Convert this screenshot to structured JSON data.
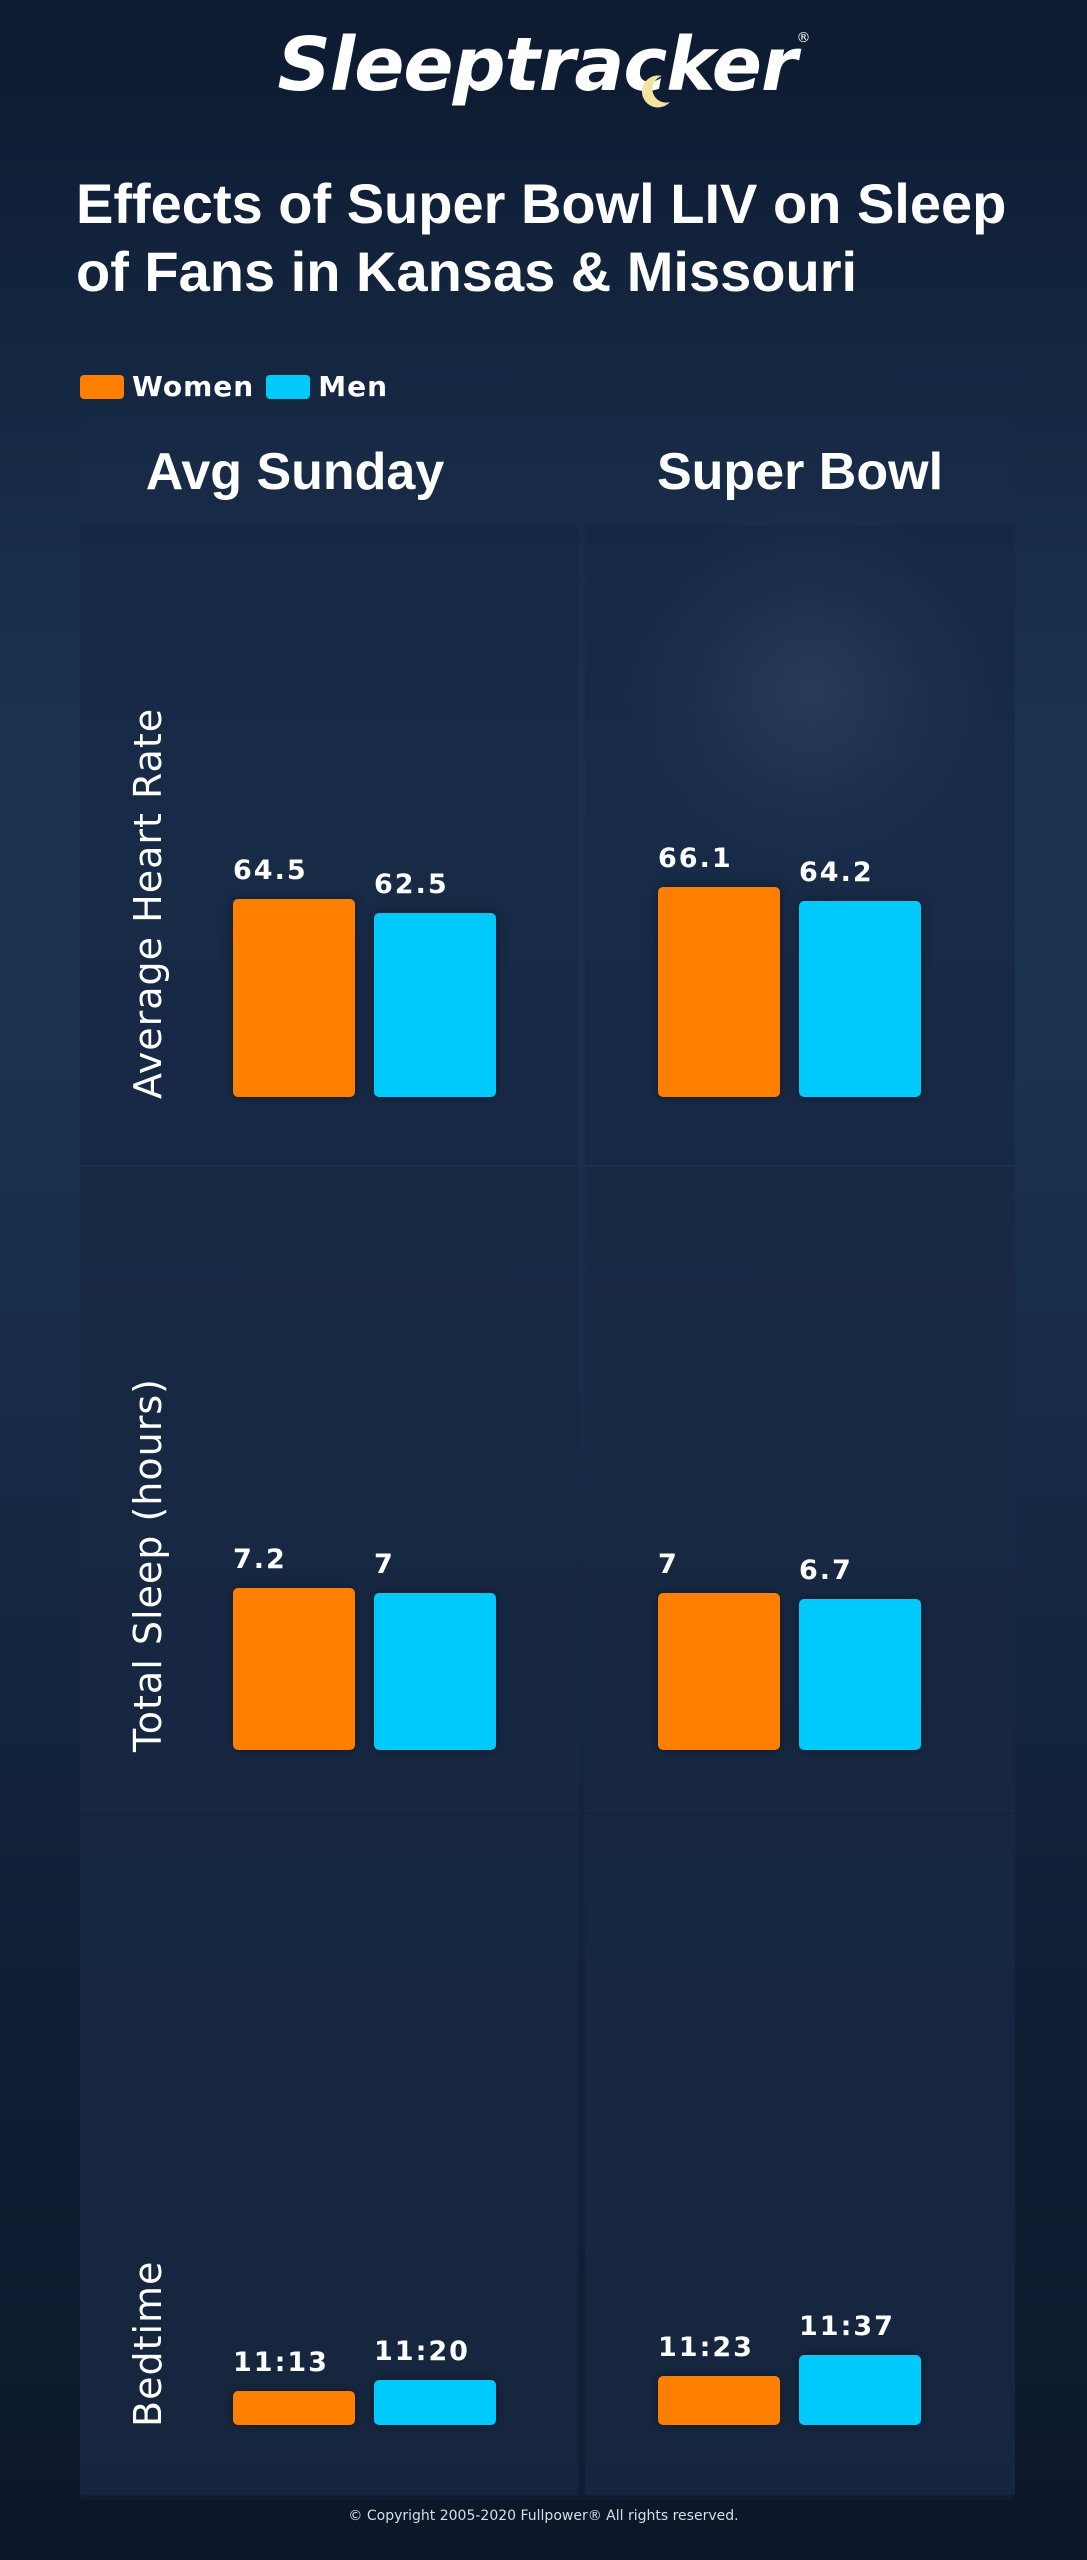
{
  "brand": {
    "logo_text": "Sleeptracker",
    "registered_mark": "®"
  },
  "title": "Effects of Super Bowl LIV on Sleep of Fans in Kansas & Missouri",
  "legend": [
    {
      "label": "Women",
      "color": "#ff7f00"
    },
    {
      "label": "Men",
      "color": "#00cafb"
    }
  ],
  "chart_data": {
    "type": "bar",
    "columns": [
      "Avg Sunday",
      "Super Bowl"
    ],
    "series_names": [
      "Women",
      "Men"
    ],
    "rows": [
      {
        "label": "Average Heart Rate",
        "groups": [
          {
            "column": "Avg Sunday",
            "values": [
              64.5,
              62.5
            ],
            "labels": [
              "64.5",
              "62.5"
            ]
          },
          {
            "column": "Super Bowl",
            "values": [
              66.1,
              64.2
            ],
            "labels": [
              "66.1",
              "64.2"
            ]
          }
        ]
      },
      {
        "label": "Total Sleep (hours)",
        "groups": [
          {
            "column": "Avg Sunday",
            "values": [
              7.2,
              7
            ],
            "labels": [
              "7.2",
              "7"
            ]
          },
          {
            "column": "Super Bowl",
            "values": [
              7,
              6.7
            ],
            "labels": [
              "7",
              "6.7"
            ]
          }
        ]
      },
      {
        "label": "Bedtime",
        "groups": [
          {
            "column": "Avg Sunday",
            "values": [
              "11:13",
              "11:20"
            ],
            "labels": [
              "11:13",
              "11:20"
            ]
          },
          {
            "column": "Super Bowl",
            "values": [
              "11:23",
              "11:37"
            ],
            "labels": [
              "11:23",
              "11:37"
            ]
          }
        ]
      }
    ],
    "grid": false,
    "legend_position": "top-left"
  },
  "footer": {
    "copyright": "© Copyright 2005-2020 Fullpower® All rights reserved."
  }
}
